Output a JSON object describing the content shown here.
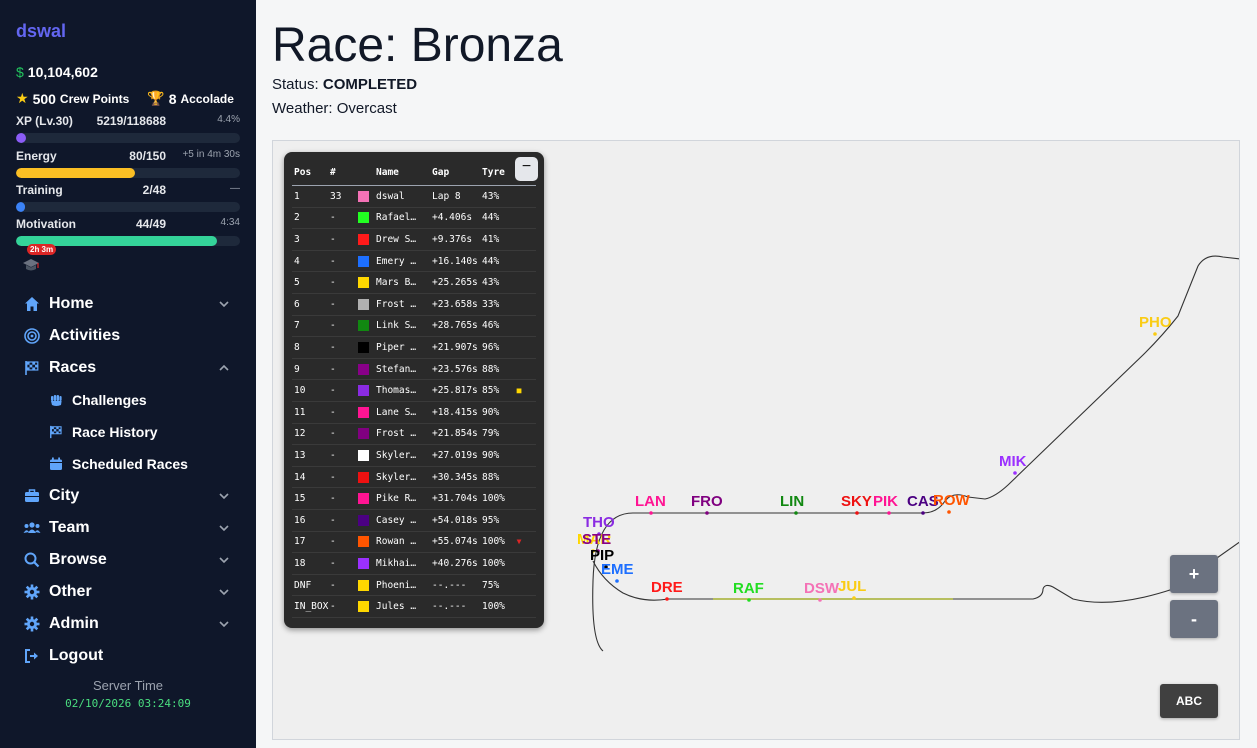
{
  "sidebar": {
    "brand": "dswal",
    "money": "10,104,602",
    "money_symbol": "$",
    "crew_points": "500",
    "crew_points_label": "Crew Points",
    "accolades": "8",
    "accolades_label": "Accolade",
    "meters": [
      {
        "label": "XP (Lv.30)",
        "value": "5219/118688",
        "side": "4.4%",
        "fraction": 0.044,
        "color": "#8b5cf6"
      },
      {
        "label": "Energy",
        "value": "80/150",
        "side": "+5 in 4m 30s",
        "fraction": 0.533,
        "color": "#fbbf24"
      },
      {
        "label": "Training",
        "value": "2/48",
        "side": "—",
        "fraction": 0.042,
        "color": "#3b82f6"
      },
      {
        "label": "Motivation",
        "value": "44/49",
        "side": "4:34",
        "fraction": 0.898,
        "color": "#34d399"
      }
    ],
    "cap_badge": "2h 3m",
    "nav": [
      {
        "label": "Home",
        "icon": "home-icon",
        "chevron": "down"
      },
      {
        "label": "Activities",
        "icon": "target-icon",
        "chevron": ""
      },
      {
        "label": "Races",
        "icon": "checkered-flag-icon",
        "chevron": "up"
      },
      {
        "label": "City",
        "icon": "briefcase-icon",
        "chevron": "down"
      },
      {
        "label": "Team",
        "icon": "users-icon",
        "chevron": "down"
      },
      {
        "label": "Browse",
        "icon": "search-icon",
        "chevron": "down"
      },
      {
        "label": "Other",
        "icon": "gear-icon",
        "chevron": "down"
      },
      {
        "label": "Admin",
        "icon": "gear-icon",
        "chevron": "down"
      },
      {
        "label": "Logout",
        "icon": "logout-icon",
        "chevron": ""
      }
    ],
    "races_sub": [
      {
        "label": "Challenges",
        "icon": "fist-icon"
      },
      {
        "label": "Race History",
        "icon": "checkered-flag-icon"
      },
      {
        "label": "Scheduled Races",
        "icon": "calendar-icon"
      }
    ],
    "server_time_label": "Server Time",
    "server_time": "02/10/2026 03:24:09"
  },
  "page": {
    "title": "Race: Bronza",
    "status_label": "Status:",
    "status_value": "COMPLETED",
    "weather": "Weather: Overcast"
  },
  "leaderboard": {
    "headers": {
      "pos": "Pos",
      "num": "#",
      "name": "Name",
      "gap": "Gap",
      "tyre": "Tyre"
    },
    "collapse_label": "−",
    "rows": [
      {
        "pos": "1",
        "num": "33",
        "color": "#f472b6",
        "name": "dswal",
        "gap": "Lap 8",
        "tyre": "43%",
        "ind": "",
        "ind_color": ""
      },
      {
        "pos": "2",
        "num": "-",
        "color": "#22ff22",
        "name": "Rafael…",
        "gap": "+4.406s",
        "tyre": "44%",
        "ind": "",
        "ind_color": ""
      },
      {
        "pos": "3",
        "num": "-",
        "color": "#ff1a1a",
        "name": "Drew S…",
        "gap": "+9.376s",
        "tyre": "41%",
        "ind": "",
        "ind_color": ""
      },
      {
        "pos": "4",
        "num": "-",
        "color": "#1d6fff",
        "name": "Emery …",
        "gap": "+16.140s",
        "tyre": "44%",
        "ind": "",
        "ind_color": ""
      },
      {
        "pos": "5",
        "num": "-",
        "color": "#ffd700",
        "name": "Mars B…",
        "gap": "+25.265s",
        "tyre": "43%",
        "ind": "",
        "ind_color": ""
      },
      {
        "pos": "6",
        "num": "-",
        "color": "#b0b0b0",
        "name": "Frost …",
        "gap": "+23.658s",
        "tyre": "33%",
        "ind": "",
        "ind_color": ""
      },
      {
        "pos": "7",
        "num": "-",
        "color": "#118811",
        "name": "Link S…",
        "gap": "+28.765s",
        "tyre": "46%",
        "ind": "",
        "ind_color": ""
      },
      {
        "pos": "8",
        "num": "-",
        "color": "#000000",
        "name": "Piper …",
        "gap": "+21.907s",
        "tyre": "96%",
        "ind": "",
        "ind_color": ""
      },
      {
        "pos": "9",
        "num": "-",
        "color": "#880088",
        "name": "Stefan…",
        "gap": "+23.576s",
        "tyre": "88%",
        "ind": "",
        "ind_color": ""
      },
      {
        "pos": "10",
        "num": "-",
        "color": "#8a2be2",
        "name": "Thomas…",
        "gap": "+25.817s",
        "tyre": "85%",
        "ind": "■",
        "ind_color": "#ffd700"
      },
      {
        "pos": "11",
        "num": "-",
        "color": "#ff1493",
        "name": "Lane S…",
        "gap": "+18.415s",
        "tyre": "90%",
        "ind": "",
        "ind_color": ""
      },
      {
        "pos": "12",
        "num": "-",
        "color": "#800080",
        "name": "Frost …",
        "gap": "+21.854s",
        "tyre": "79%",
        "ind": "",
        "ind_color": ""
      },
      {
        "pos": "13",
        "num": "-",
        "color": "#ffffff",
        "name": "Skyler…",
        "gap": "+27.019s",
        "tyre": "90%",
        "ind": "",
        "ind_color": ""
      },
      {
        "pos": "14",
        "num": "-",
        "color": "#ee1111",
        "name": "Skyler…",
        "gap": "+30.345s",
        "tyre": "88%",
        "ind": "",
        "ind_color": ""
      },
      {
        "pos": "15",
        "num": "-",
        "color": "#ff1493",
        "name": "Pike R…",
        "gap": "+31.704s",
        "tyre": "100%",
        "ind": "",
        "ind_color": ""
      },
      {
        "pos": "16",
        "num": "-",
        "color": "#4b0082",
        "name": "Casey …",
        "gap": "+54.018s",
        "tyre": "95%",
        "ind": "",
        "ind_color": ""
      },
      {
        "pos": "17",
        "num": "-",
        "color": "#ff5500",
        "name": "Rowan …",
        "gap": "+55.074s",
        "tyre": "100%",
        "ind": "▼",
        "ind_color": "#dc2626"
      },
      {
        "pos": "18",
        "num": "-",
        "color": "#9b30ff",
        "name": "Mikhai…",
        "gap": "+40.276s",
        "tyre": "100%",
        "ind": "",
        "ind_color": ""
      },
      {
        "pos": "DNF",
        "num": "-",
        "color": "#ffd700",
        "name": "Phoeni…",
        "gap": "--.---",
        "tyre": "75%",
        "ind": "",
        "ind_color": ""
      },
      {
        "pos": "IN_BOX",
        "num": "-",
        "color": "#ffd700",
        "name": "Jules …",
        "gap": "--.---",
        "tyre": "100%",
        "ind": "",
        "ind_color": ""
      }
    ]
  },
  "track_labels": [
    {
      "text": "PHO",
      "color": "#facc15"
    },
    {
      "text": "MIK",
      "color": "#9b30ff"
    },
    {
      "text": "LAN",
      "color": "#ff1493"
    },
    {
      "text": "FRO",
      "color": "#800080"
    },
    {
      "text": "LIN",
      "color": "#118811"
    },
    {
      "text": "SKY",
      "color": "#ee1111"
    },
    {
      "text": "PIK",
      "color": "#ff1493"
    },
    {
      "text": "CAS",
      "color": "#4b0082"
    },
    {
      "text": "ROW",
      "color": "#ff5500"
    },
    {
      "text": "THO",
      "color": "#8a2be2"
    },
    {
      "text": "MAR",
      "color": "#ffd700"
    },
    {
      "text": "STE",
      "color": "#880088"
    },
    {
      "text": "PIP",
      "color": "#000000"
    },
    {
      "text": "EME",
      "color": "#1d6fff"
    },
    {
      "text": "DRE",
      "color": "#ff1a1a"
    },
    {
      "text": "RAF",
      "color": "#22dd22"
    },
    {
      "text": "DSW",
      "color": "#f472b6"
    },
    {
      "text": "JUL",
      "color": "#facc15"
    }
  ],
  "controls": {
    "zoom_in": "+",
    "zoom_out": "-",
    "abc": "ABC"
  }
}
